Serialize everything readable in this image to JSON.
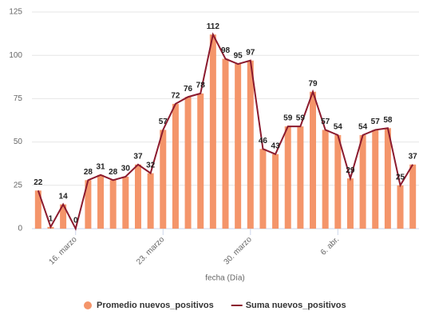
{
  "chart_data": {
    "type": "bar-line",
    "x_label": "fecha (Día)",
    "categories": [
      null,
      null,
      null,
      "16. marzo",
      null,
      null,
      null,
      null,
      null,
      null,
      "23. marzo",
      null,
      null,
      null,
      null,
      null,
      null,
      "30. marzo",
      null,
      null,
      null,
      null,
      null,
      null,
      "6. abr.",
      null,
      null,
      null,
      null,
      null,
      null
    ],
    "series": [
      {
        "name": "Promedio nuevos_positivos",
        "type": "bar",
        "color": "#f4956a",
        "values": [
          22,
          1,
          14,
          0,
          28,
          31,
          28,
          30,
          37,
          32,
          57,
          72,
          76,
          78,
          112,
          98,
          95,
          97,
          46,
          43,
          59,
          59,
          79,
          57,
          54,
          29,
          54,
          57,
          58,
          25,
          37
        ]
      },
      {
        "name": "Suma nuevos_positivos",
        "type": "line",
        "color": "#8b1a2e",
        "values": [
          22,
          1,
          14,
          0,
          28,
          31,
          28,
          30,
          37,
          32,
          57,
          72,
          76,
          78,
          112,
          98,
          95,
          97,
          46,
          43,
          59,
          59,
          79,
          57,
          54,
          29,
          54,
          57,
          58,
          25,
          37
        ]
      }
    ],
    "ylim": [
      0,
      125
    ],
    "yticks": [
      0,
      25,
      50,
      75,
      100,
      125
    ],
    "grid": true,
    "legend": "bottom"
  }
}
